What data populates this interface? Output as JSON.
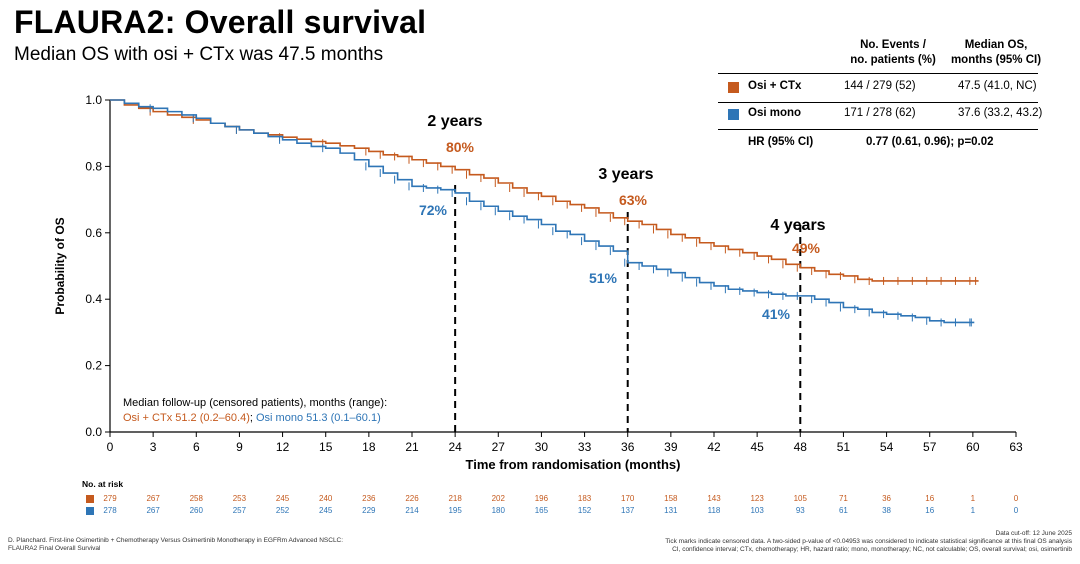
{
  "title": "FLAURA2: Overall survival",
  "subtitle": "Median OS with osi + CTx was 47.5 months",
  "colors": {
    "osi_ctx": "#c55a1e",
    "osi_mono": "#2e75b6",
    "axis": "#000000"
  },
  "legend_table": {
    "col1_header_line1": "No. Events /",
    "col1_header_line2": "no. patients (%)",
    "col2_header_line1": "Median OS,",
    "col2_header_line2": "months (95% CI)",
    "rows": [
      {
        "label": "Osi + CTx",
        "events": "144 / 279 (52)",
        "median": "47.5 (41.0, NC)"
      },
      {
        "label": "Osi mono",
        "events": "171 / 278 (62)",
        "median": "37.6 (33.2, 43.2)"
      }
    ],
    "hr_label": "HR (95% CI)",
    "hr_value": "0.77 (0.61, 0.96); p=0.02"
  },
  "followup": {
    "heading": "Median follow-up (censored patients), months (range):",
    "osi_ctx": "Osi + CTx 51.2 (0.2–60.4)",
    "separator": ";",
    "osi_mono": "Osi mono 51.3 (0.1–60.1)"
  },
  "annotations": [
    {
      "year": "2 years",
      "osi_ctx": "80%",
      "osi_mono": "72%"
    },
    {
      "year": "3 years",
      "osi_ctx": "63%",
      "osi_mono": "51%"
    },
    {
      "year": "4 years",
      "osi_ctx": "49%",
      "osi_mono": "41%"
    }
  ],
  "risk_table": {
    "label": "No. at risk",
    "times": [
      0,
      3,
      6,
      9,
      12,
      15,
      18,
      21,
      24,
      27,
      30,
      33,
      36,
      39,
      42,
      45,
      48,
      51,
      54,
      57,
      60,
      63
    ],
    "osi_ctx": [
      "279",
      "267",
      "258",
      "253",
      "245",
      "240",
      "236",
      "226",
      "218",
      "202",
      "196",
      "183",
      "170",
      "158",
      "143",
      "123",
      "105",
      "71",
      "36",
      "16",
      "1",
      "0"
    ],
    "osi_mono": [
      "278",
      "267",
      "260",
      "257",
      "252",
      "245",
      "229",
      "214",
      "195",
      "180",
      "165",
      "152",
      "137",
      "131",
      "118",
      "103",
      "93",
      "61",
      "38",
      "16",
      "1",
      "0"
    ]
  },
  "footnote_left": [
    "D. Planchard. First-line Osimertinib + Chemotherapy Versus Osimertinib Monotherapy in EGFRm Advanced NSCLC:",
    "FLAURA2 Final Overall Survival"
  ],
  "footnote_right": [
    "Data cut-off: 12 June 2025",
    "Tick marks indicate censored data. A two-sided p-value of <0.04953 was considered to indicate statistical significance at this final OS analysis",
    "CI, confidence interval; CTx, chemotherapy; HR, hazard ratio; mono, monotherapy; NC, not calculable; OS, overall survival; osi, osimertinib"
  ],
  "chart_data": {
    "type": "line",
    "title": "FLAURA2: Overall survival",
    "xlabel": "Time from randomisation (months)",
    "ylabel": "Probability of OS",
    "xlim": [
      0,
      63
    ],
    "ylim": [
      0,
      1.0
    ],
    "xticks": [
      0,
      3,
      6,
      9,
      12,
      15,
      18,
      21,
      24,
      27,
      30,
      33,
      36,
      39,
      42,
      45,
      48,
      51,
      54,
      57,
      60,
      63
    ],
    "yticks": [
      "0.0",
      "0.2",
      "0.4",
      "0.6",
      "0.8",
      "1.0"
    ],
    "reference_lines_x": [
      24,
      36,
      48
    ],
    "series": [
      {
        "name": "Osi + CTx",
        "x": [
          0,
          1,
          2,
          3,
          4,
          5,
          6,
          7,
          8,
          9,
          10,
          11,
          12,
          13,
          14,
          15,
          16,
          17,
          18,
          19,
          20,
          21,
          22,
          23,
          24,
          25,
          26,
          27,
          28,
          29,
          30,
          31,
          32,
          33,
          34,
          35,
          36,
          37,
          38,
          39,
          40,
          41,
          42,
          43,
          44,
          45,
          46,
          47,
          48,
          49,
          50,
          51,
          52,
          53,
          54,
          55,
          56,
          57,
          58,
          59,
          60,
          60.4
        ],
        "y": [
          1.0,
          0.985,
          0.975,
          0.965,
          0.955,
          0.948,
          0.94,
          0.93,
          0.92,
          0.91,
          0.9,
          0.895,
          0.888,
          0.882,
          0.875,
          0.87,
          0.862,
          0.855,
          0.845,
          0.835,
          0.83,
          0.82,
          0.81,
          0.8,
          0.79,
          0.775,
          0.765,
          0.75,
          0.735,
          0.72,
          0.71,
          0.695,
          0.685,
          0.675,
          0.66,
          0.645,
          0.635,
          0.625,
          0.61,
          0.595,
          0.585,
          0.57,
          0.56,
          0.55,
          0.54,
          0.53,
          0.52,
          0.505,
          0.495,
          0.485,
          0.475,
          0.47,
          0.46,
          0.455,
          0.455,
          0.455,
          0.455,
          0.455,
          0.455,
          0.455,
          0.455,
          0.455
        ]
      },
      {
        "name": "Osi mono",
        "x": [
          0,
          1,
          2,
          3,
          4,
          5,
          6,
          7,
          8,
          9,
          10,
          11,
          12,
          13,
          14,
          15,
          16,
          17,
          18,
          19,
          20,
          21,
          22,
          23,
          24,
          25,
          26,
          27,
          28,
          29,
          30,
          31,
          32,
          33,
          34,
          35,
          36,
          37,
          38,
          39,
          40,
          41,
          42,
          43,
          44,
          45,
          46,
          47,
          48,
          49,
          50,
          51,
          52,
          53,
          54,
          55,
          56,
          57,
          58,
          59,
          60,
          60.1
        ],
        "y": [
          1.0,
          0.99,
          0.98,
          0.975,
          0.965,
          0.955,
          0.945,
          0.93,
          0.92,
          0.91,
          0.9,
          0.89,
          0.88,
          0.87,
          0.86,
          0.855,
          0.84,
          0.82,
          0.8,
          0.78,
          0.76,
          0.74,
          0.735,
          0.73,
          0.72,
          0.695,
          0.68,
          0.665,
          0.65,
          0.64,
          0.625,
          0.605,
          0.595,
          0.575,
          0.56,
          0.545,
          0.51,
          0.5,
          0.49,
          0.48,
          0.465,
          0.45,
          0.44,
          0.43,
          0.425,
          0.42,
          0.415,
          0.41,
          0.41,
          0.4,
          0.39,
          0.375,
          0.37,
          0.36,
          0.355,
          0.35,
          0.345,
          0.335,
          0.33,
          0.33,
          0.33,
          0.33
        ]
      }
    ]
  }
}
